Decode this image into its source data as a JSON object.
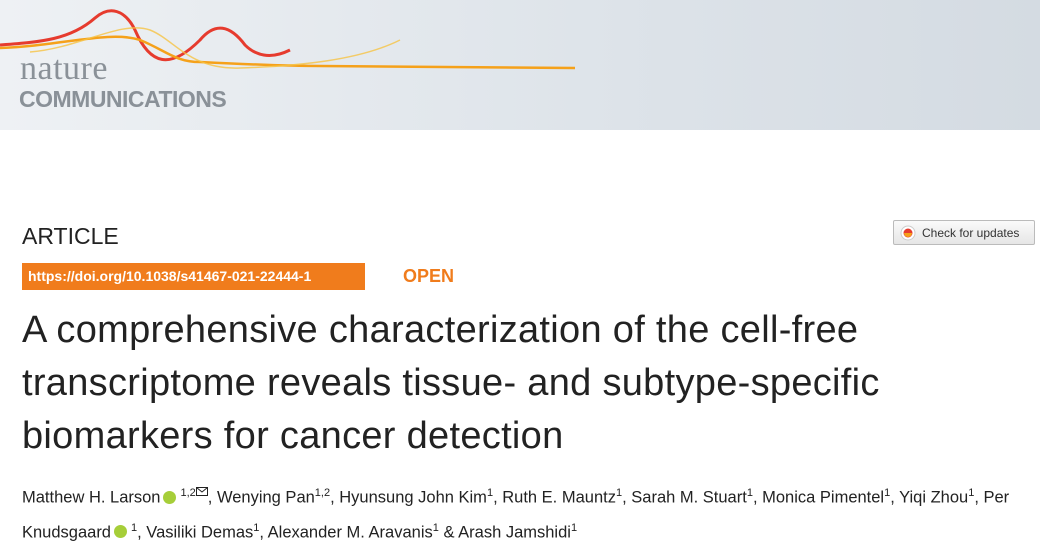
{
  "header": {
    "logo_line1": "nature",
    "logo_line2": "COMMUNICATIONS"
  },
  "article_type": "ARTICLE",
  "check_updates": "Check for updates",
  "doi": "https://doi.org/10.1038/s41467-021-22444-1",
  "access": "OPEN",
  "title": [
    "A comprehensive characterization of the cell-free",
    "transcriptome reveals tissue- and subtype-specific",
    "biomarkers for cancer detection"
  ],
  "authors": [
    {
      "name": "Matthew H. Larson",
      "orcid": true,
      "sup": "1,2",
      "corresponding": true,
      "sep": ", "
    },
    {
      "name": "Wenying Pan",
      "sup": "1,2",
      "sep": ", "
    },
    {
      "name": "Hyunsung John Kim",
      "sup": "1",
      "sep": ", "
    },
    {
      "name": "Ruth E. Mauntz",
      "sup": "1",
      "sep": ", "
    },
    {
      "name": "Sarah M. Stuart",
      "sup": "1",
      "sep": ", "
    },
    {
      "name": "Monica Pimentel",
      "sup": "1",
      "sep": ", "
    },
    {
      "name": "Yiqi Zhou",
      "sup": "1",
      "sep": ", "
    },
    {
      "name": "Per Knudsgaard",
      "orcid": true,
      "sup": "1",
      "sep": ", "
    },
    {
      "name": "Vasiliki Demas",
      "sup": "1",
      "sep": ", "
    },
    {
      "name": "Alexander M. Aravanis",
      "sup": "1",
      "sep": " & "
    },
    {
      "name": "Arash Jamshidi",
      "sup": "1"
    }
  ]
}
